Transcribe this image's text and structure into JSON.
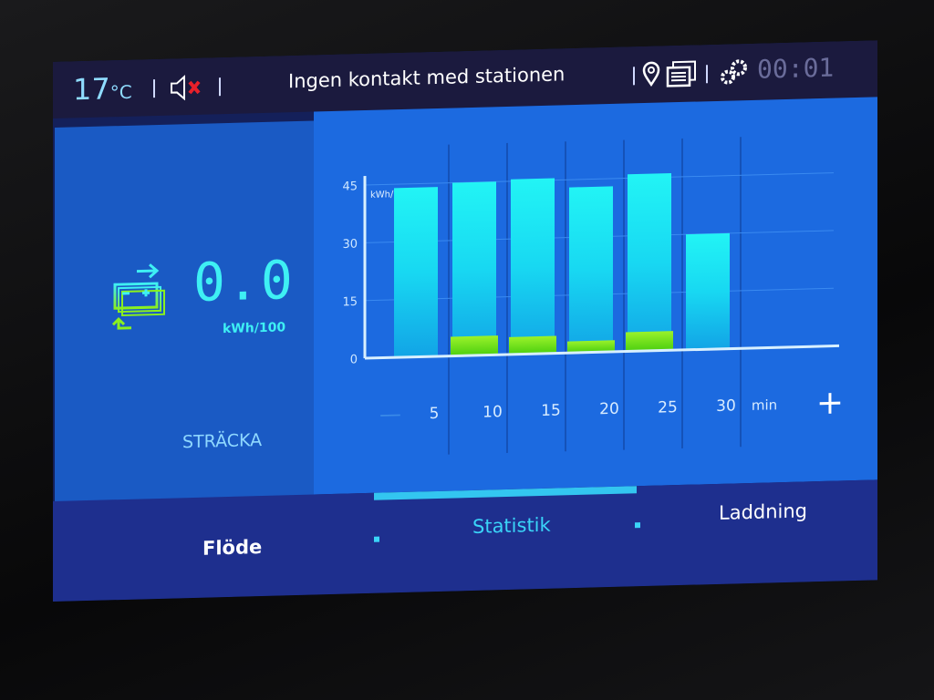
{
  "header": {
    "temperature": "17",
    "temperature_unit": "°C",
    "status": "Ingen kontakt med stationen",
    "clock": "00:01",
    "icons": [
      "speaker-muted-icon",
      "location-pin-icon",
      "messages-icon",
      "settings-gears-icon"
    ]
  },
  "left_panel": {
    "icon": "battery-regen-icon",
    "value": "0.0",
    "unit": "kWh/100",
    "label": "STRÄCKA"
  },
  "chart_data": {
    "type": "bar",
    "categories": [
      "5",
      "10",
      "15",
      "20",
      "25",
      "30"
    ],
    "x_unit": "min",
    "ylabel": "kWh/100",
    "ylim": [
      0,
      45
    ],
    "yticks": [
      "0",
      "15",
      "30",
      "45"
    ],
    "grid": true,
    "series": [
      {
        "values": [
          44,
          45,
          45.5,
          43,
          46,
          30
        ],
        "color": "#22eef5"
      },
      {
        "values": [
          0,
          5,
          4.5,
          3,
          5,
          0
        ],
        "color": "#7cf21e"
      }
    ]
  },
  "controls": {
    "minus": "—",
    "plus": "+"
  },
  "nav": {
    "tabs": [
      {
        "label": "Flöde"
      },
      {
        "label": "Statistik",
        "active": true
      },
      {
        "label": "Laddning"
      }
    ]
  },
  "colors": {
    "accent": "#3ef0f4",
    "bar": "#22eef5",
    "regen": "#7cf21e",
    "panel": "#1c6ae0"
  }
}
